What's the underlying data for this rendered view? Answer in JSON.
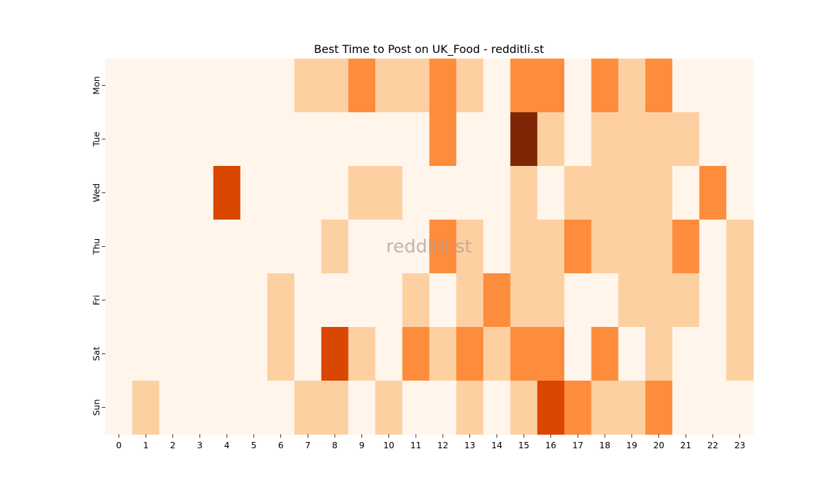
{
  "chart_data": {
    "type": "heatmap",
    "title": "Best Time to Post on UK_Food - redditli.st",
    "watermark": "redditli.st",
    "x_categories": [
      "0",
      "1",
      "2",
      "3",
      "4",
      "5",
      "6",
      "7",
      "8",
      "9",
      "10",
      "11",
      "12",
      "13",
      "14",
      "15",
      "16",
      "17",
      "18",
      "19",
      "20",
      "21",
      "22",
      "23"
    ],
    "y_categories": [
      "Mon",
      "Tue",
      "Wed",
      "Thu",
      "Fri",
      "Sat",
      "Sun"
    ],
    "values": [
      [
        0,
        0,
        0,
        0,
        0,
        0,
        0,
        1,
        1,
        2,
        1,
        1,
        2,
        1,
        0,
        2,
        2,
        0,
        2,
        1,
        2,
        0,
        0,
        0
      ],
      [
        0,
        0,
        0,
        0,
        0,
        0,
        0,
        0,
        0,
        0,
        0,
        0,
        2,
        0,
        0,
        4,
        1,
        0,
        1,
        1,
        1,
        1,
        0,
        0
      ],
      [
        0,
        0,
        0,
        0,
        3,
        0,
        0,
        0,
        0,
        1,
        1,
        0,
        0,
        0,
        0,
        1,
        0,
        1,
        1,
        1,
        1,
        0,
        2,
        0
      ],
      [
        0,
        0,
        0,
        0,
        0,
        0,
        0,
        0,
        1,
        0,
        0,
        0,
        2,
        1,
        0,
        1,
        1,
        2,
        1,
        1,
        1,
        2,
        0,
        1
      ],
      [
        0,
        0,
        0,
        0,
        0,
        0,
        1,
        0,
        0,
        0,
        0,
        1,
        0,
        1,
        2,
        1,
        1,
        0,
        0,
        1,
        1,
        1,
        0,
        1
      ],
      [
        0,
        0,
        0,
        0,
        0,
        0,
        1,
        0,
        3,
        1,
        0,
        2,
        1,
        2,
        1,
        2,
        2,
        0,
        2,
        0,
        1,
        0,
        0,
        1
      ],
      [
        0,
        1,
        0,
        0,
        0,
        0,
        0,
        1,
        1,
        0,
        1,
        0,
        0,
        1,
        0,
        1,
        3,
        2,
        1,
        1,
        2,
        0,
        0,
        0
      ]
    ],
    "value_range": [
      0,
      4
    ],
    "colors": {
      "0": "#fff5eb",
      "1": "#fdd0a2",
      "2": "#fd8d3c",
      "3": "#d94701",
      "4": "#7f2704"
    },
    "legend": "none",
    "grid": false
  }
}
